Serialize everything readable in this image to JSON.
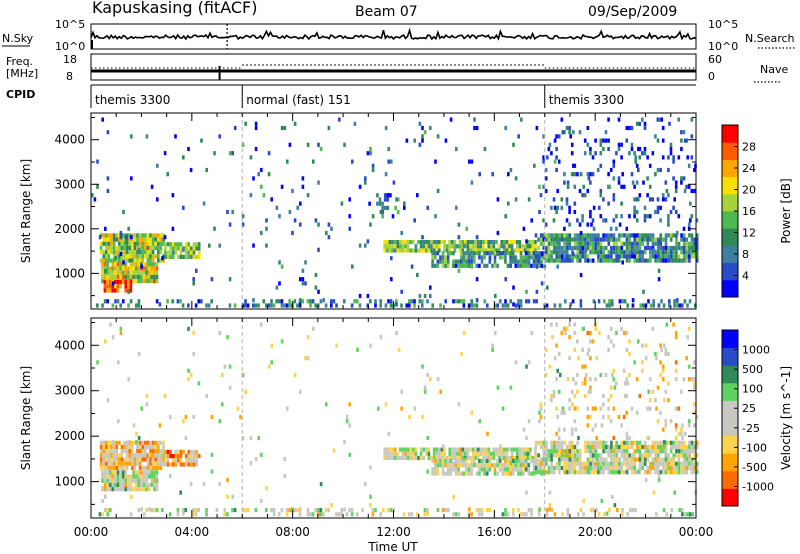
{
  "header": {
    "station": "Kapuskasing (fitACF)",
    "beam": "Beam 07",
    "date": "09/Sep/2009"
  },
  "chart_data": [
    {
      "type": "line",
      "panel": "noise",
      "labels": {
        "left": "N.Sky",
        "right": "N.Search"
      },
      "left_ticks": [
        "10^5",
        "10^0"
      ],
      "right_ticks": [
        "10^5",
        "10^0"
      ]
    },
    {
      "type": "line",
      "panel": "frequency",
      "labels": {
        "left_top": "Freq.",
        "left_bottom": "[MHz]",
        "right": "Nave"
      },
      "left_ticks": [
        "18",
        "8"
      ],
      "right_ticks": [
        "60",
        "0"
      ]
    },
    {
      "type": "table",
      "panel": "cpid",
      "label": "CPID",
      "segments": [
        {
          "start": 0,
          "end": 6,
          "name": "themis 3300"
        },
        {
          "start": 6,
          "end": 18,
          "name": "normal (fast) 151"
        },
        {
          "start": 18,
          "end": 24,
          "name": "themis 3300"
        }
      ]
    },
    {
      "type": "heatmap",
      "panel": "power",
      "ylabel": "Slant Range [km]",
      "ylim": [
        200,
        4600
      ],
      "yticks": [
        1000,
        2000,
        3000,
        4000
      ],
      "colorbar_label": "Power [dB]",
      "colorbar_ticks": [
        "28",
        "24",
        "20",
        "16",
        "12",
        "8",
        "4"
      ],
      "colors": [
        "#0000ff",
        "#2a4bc8",
        "#3f7fa0",
        "#2e8b57",
        "#4fb84f",
        "#a6d33a",
        "#f5e000",
        "#ffa500",
        "#ff5a00",
        "#ff0000"
      ],
      "regions": [
        {
          "t0": 0.35,
          "t1": 2.9,
          "r0": 1300,
          "r1": 1900,
          "density": 0.95,
          "level": 0.55
        },
        {
          "t0": 2.9,
          "t1": 4.3,
          "r0": 1350,
          "r1": 1700,
          "density": 0.85,
          "level": 0.5
        },
        {
          "t0": 0.4,
          "t1": 2.6,
          "r0": 850,
          "r1": 1250,
          "density": 0.95,
          "level": 0.6
        },
        {
          "t0": 0.5,
          "t1": 1.6,
          "r0": 600,
          "r1": 850,
          "density": 0.95,
          "level": 0.9
        },
        {
          "t0": 0.2,
          "t1": 24,
          "r0": 250,
          "r1": 420,
          "density": 0.35,
          "level": 0.25
        },
        {
          "t0": 11.0,
          "t1": 12.2,
          "r0": 2300,
          "r1": 2800,
          "density": 0.25,
          "level": 0.25
        },
        {
          "t0": 11.6,
          "t1": 17.6,
          "r0": 1500,
          "r1": 1750,
          "density": 0.9,
          "level": 0.45
        },
        {
          "t0": 13.5,
          "t1": 18.0,
          "r0": 1150,
          "r1": 1500,
          "density": 0.8,
          "level": 0.3
        },
        {
          "t0": 17.6,
          "t1": 24,
          "r0": 1250,
          "r1": 1900,
          "density": 0.85,
          "level": 0.3
        },
        {
          "t0": 17.8,
          "t1": 24,
          "r0": 2000,
          "r1": 4500,
          "density": 0.12,
          "level": 0.15
        },
        {
          "t0": 0.0,
          "t1": 24,
          "r0": 300,
          "r1": 4500,
          "density": 0.025,
          "level": 0.2
        }
      ]
    },
    {
      "type": "heatmap",
      "panel": "velocity",
      "ylabel": "Slant Range [km]",
      "ylim": [
        200,
        4600
      ],
      "yticks": [
        1000,
        2000,
        3000,
        4000
      ],
      "colorbar_label": "Velocity [m s^-1]",
      "colorbar_ticks": [
        "1000",
        "500",
        "100",
        "25",
        "-25",
        "-100",
        "-500",
        "-1000"
      ],
      "colors": [
        "#ff0000",
        "#ff6a00",
        "#ffa500",
        "#ffd24d",
        "#c8c8c0",
        "#c8c8c0",
        "#5fd35f",
        "#2e8b57",
        "#2a4bc8",
        "#0000ff"
      ],
      "regions": [
        {
          "t0": 0.35,
          "t1": 2.9,
          "r0": 1300,
          "r1": 1900,
          "density": 0.9,
          "level": 0.35
        },
        {
          "t0": 2.9,
          "t1": 4.3,
          "r0": 1350,
          "r1": 1700,
          "density": 0.85,
          "level": 0.3
        },
        {
          "t0": 0.4,
          "t1": 2.6,
          "r0": 850,
          "r1": 1250,
          "density": 0.95,
          "level": 0.5
        },
        {
          "t0": 0.2,
          "t1": 24,
          "r0": 250,
          "r1": 420,
          "density": 0.3,
          "level": 0.5
        },
        {
          "t0": 11.6,
          "t1": 17.6,
          "r0": 1500,
          "r1": 1750,
          "density": 0.9,
          "level": 0.5
        },
        {
          "t0": 13.5,
          "t1": 18.0,
          "r0": 1150,
          "r1": 1500,
          "density": 0.8,
          "level": 0.5
        },
        {
          "t0": 17.6,
          "t1": 24,
          "r0": 1250,
          "r1": 1900,
          "density": 0.85,
          "level": 0.5
        },
        {
          "t0": 17.8,
          "t1": 24,
          "r0": 2000,
          "r1": 4500,
          "density": 0.1,
          "level": 0.4
        },
        {
          "t0": 0.0,
          "t1": 24,
          "r0": 300,
          "r1": 4500,
          "density": 0.02,
          "level": 0.5
        }
      ]
    }
  ],
  "x_axis": {
    "label": "Time UT",
    "ticks": [
      "00:00",
      "04:00",
      "08:00",
      "12:00",
      "16:00",
      "20:00",
      "00:00"
    ],
    "range_hours": [
      0,
      24
    ]
  }
}
